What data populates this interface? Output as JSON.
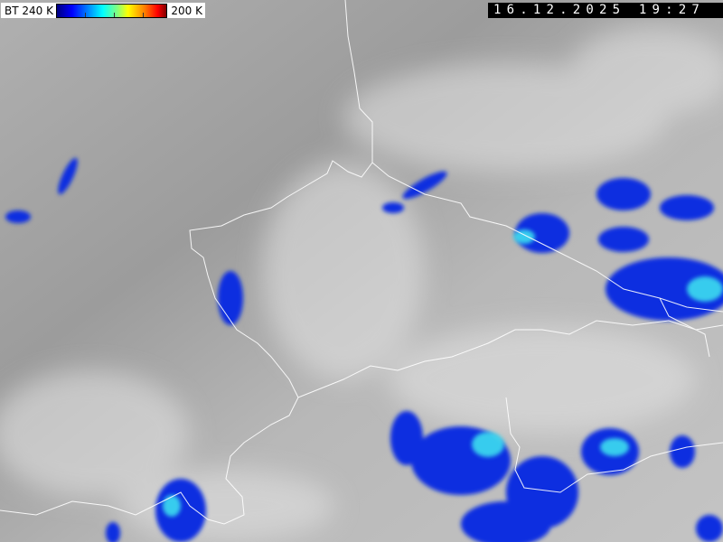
{
  "legend": {
    "label_left": "BT 240 K",
    "label_right": "200 K",
    "colors": [
      "#000080",
      "#0000ff",
      "#0080ff",
      "#00ffff",
      "#ffff00",
      "#ff0000",
      "#800000"
    ]
  },
  "timestamp": "16.12.2025 19:27",
  "map": {
    "background_color": "#a8a8a8",
    "border_color": "#ffffff",
    "cold_cloud_color": "#0a2fe0",
    "coldest_cloud_color": "#40e8f0"
  }
}
